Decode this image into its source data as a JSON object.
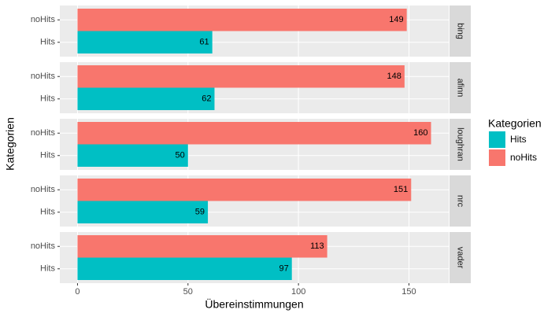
{
  "chart_data": {
    "type": "bar",
    "orientation": "horizontal",
    "x_label": "Übereinstimmungen",
    "y_label": "Kategorien",
    "facets": [
      "bing",
      "afinn",
      "loughran",
      "nrc",
      "vader"
    ],
    "series": [
      {
        "name": "Hits",
        "color": "#00BFC4",
        "values": [
          61,
          62,
          50,
          59,
          97
        ]
      },
      {
        "name": "noHits",
        "color": "#F8766D",
        "values": [
          149,
          148,
          160,
          151,
          113
        ]
      }
    ],
    "xlim": [
      -8,
      168
    ],
    "xticks": [
      0,
      50,
      100,
      150
    ],
    "grid": true,
    "legend": {
      "title": "Kategorien",
      "position": "right"
    }
  }
}
